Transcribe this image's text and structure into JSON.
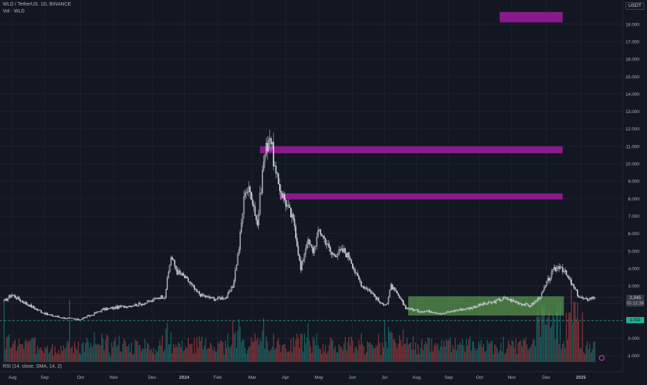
{
  "legend": {
    "symbol": "WLD / TetherUS, 1D, BINANCE",
    "volume": "Vol · WLD",
    "rsi": "RSI (14, close, SMA, 14, 2)"
  },
  "price_scale": {
    "currency": "USDT",
    "last_price": "2.345",
    "countdown": "05:12:38",
    "level": "1.011"
  },
  "colors": {
    "background": "#131722",
    "candle": "#c9ccd4",
    "vol_up": "#26a69a",
    "vol_down": "#ef5350",
    "zone_purple": "#8e1a91",
    "zone_green": "#5d9b50",
    "dashed_level": "#22ab94",
    "grid": "#1e222d",
    "axis_text": "#b2b5be"
  },
  "chart_data": {
    "type": "candlestick",
    "title": "WLD / TetherUS, 1D, BINANCE",
    "y_ticks": [
      "-1.000",
      "0.000",
      "1.000",
      "2.000",
      "3.000",
      "4.000",
      "5.000",
      "6.000",
      "7.000",
      "8.000",
      "9.000",
      "10.000",
      "11.000",
      "12.000",
      "13.000",
      "14.000",
      "15.000",
      "16.000",
      "17.000",
      "18.000"
    ],
    "x_ticks": [
      "Aug",
      "Sep",
      "Oct",
      "Nov",
      "Dec",
      "2024",
      "Feb",
      "Mar",
      "Apr",
      "May",
      "Jun",
      "Jul",
      "Aug",
      "Sep",
      "Oct",
      "Nov",
      "Dec",
      "2025"
    ],
    "ylim": [
      -1.5,
      19.2
    ],
    "price_path": [
      [
        0,
        2.1
      ],
      [
        6,
        2.5
      ],
      [
        15,
        2.1
      ],
      [
        25,
        1.7
      ],
      [
        35,
        1.35
      ],
      [
        45,
        1.2
      ],
      [
        55,
        1.1
      ],
      [
        60,
        1.05
      ],
      [
        70,
        1.3
      ],
      [
        80,
        1.65
      ],
      [
        90,
        1.75
      ],
      [
        100,
        1.85
      ],
      [
        110,
        1.95
      ],
      [
        120,
        2.15
      ],
      [
        125,
        2.35
      ],
      [
        130,
        2.4
      ],
      [
        135,
        4.7
      ],
      [
        140,
        3.8
      ],
      [
        145,
        3.55
      ],
      [
        150,
        3.2
      ],
      [
        155,
        2.7
      ],
      [
        160,
        2.45
      ],
      [
        170,
        2.25
      ],
      [
        180,
        2.35
      ],
      [
        185,
        2.95
      ],
      [
        190,
        5.2
      ],
      [
        195,
        8.6
      ],
      [
        200,
        8.3
      ],
      [
        205,
        6.5
      ],
      [
        210,
        10.2
      ],
      [
        215,
        11.8
      ],
      [
        220,
        9.2
      ],
      [
        225,
        8.3
      ],
      [
        230,
        7.4
      ],
      [
        235,
        6.5
      ],
      [
        240,
        3.9
      ],
      [
        245,
        5.6
      ],
      [
        250,
        5.0
      ],
      [
        255,
        6.2
      ],
      [
        260,
        5.6
      ],
      [
        265,
        4.8
      ],
      [
        270,
        4.9
      ],
      [
        275,
        5.0
      ],
      [
        280,
        4.6
      ],
      [
        285,
        3.6
      ],
      [
        290,
        3.0
      ],
      [
        295,
        2.8
      ],
      [
        300,
        2.4
      ],
      [
        305,
        1.95
      ],
      [
        310,
        2.0
      ],
      [
        313,
        3.0
      ],
      [
        318,
        2.5
      ],
      [
        325,
        1.75
      ],
      [
        335,
        1.55
      ],
      [
        345,
        1.55
      ],
      [
        355,
        1.4
      ],
      [
        365,
        1.6
      ],
      [
        375,
        1.7
      ],
      [
        385,
        1.9
      ],
      [
        395,
        2.05
      ],
      [
        405,
        2.3
      ],
      [
        415,
        2.05
      ],
      [
        425,
        1.85
      ],
      [
        430,
        2.1
      ],
      [
        435,
        2.5
      ],
      [
        440,
        3.3
      ],
      [
        445,
        3.9
      ],
      [
        450,
        4.2
      ],
      [
        455,
        3.6
      ],
      [
        460,
        3.0
      ],
      [
        465,
        2.4
      ],
      [
        470,
        2.2
      ],
      [
        475,
        2.3
      ],
      [
        478,
        2.35
      ]
    ],
    "zones": [
      {
        "from_day": 401,
        "to_day": 452,
        "top": 18.7,
        "bottom": 18.1,
        "color": "purple"
      },
      {
        "from_day": 207,
        "to_day": 452,
        "top": 11.0,
        "bottom": 10.6,
        "color": "purple"
      },
      {
        "from_day": 223,
        "to_day": 452,
        "top": 8.3,
        "bottom": 7.95,
        "color": "purple"
      },
      {
        "from_day": 327,
        "to_day": 453,
        "top": 2.4,
        "bottom": 1.3,
        "color": "green"
      }
    ],
    "levels": [
      {
        "value": 1.011,
        "style": "dashed",
        "label": "1.011"
      }
    ]
  }
}
